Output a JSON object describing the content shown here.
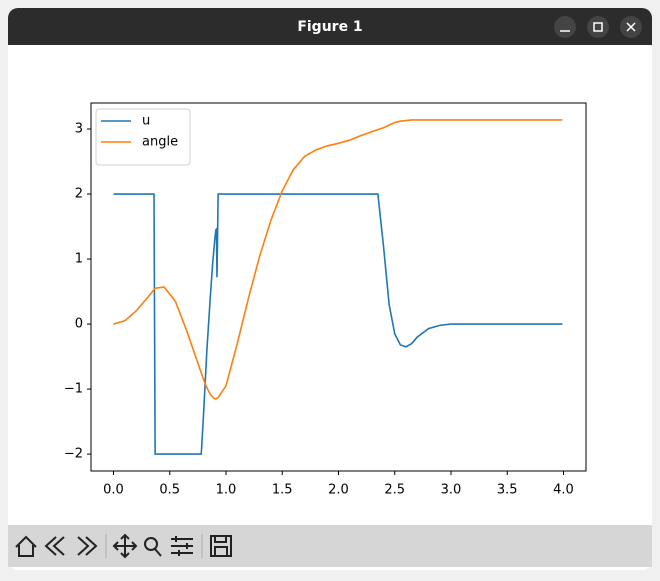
{
  "window": {
    "title": "Figure 1"
  },
  "chart_data": {
    "type": "line",
    "x": [
      0,
      0.1,
      0.2,
      0.3,
      0.36,
      0.37,
      0.45,
      0.55,
      0.65,
      0.75,
      0.78,
      0.8,
      0.83,
      0.86,
      0.88,
      0.9,
      0.91,
      0.915,
      0.92,
      0.93,
      1.0,
      1.1,
      1.2,
      1.3,
      1.4,
      1.5,
      1.6,
      1.7,
      1.8,
      1.9,
      2.0,
      2.1,
      2.2,
      2.3,
      2.35,
      2.4,
      2.45,
      2.5,
      2.55,
      2.6,
      2.65,
      2.7,
      2.8,
      2.9,
      3.0,
      3.2,
      3.4,
      3.6,
      3.8,
      3.99
    ],
    "series": [
      {
        "name": "u",
        "color": "#1f77b4",
        "values": [
          2,
          2,
          2,
          2,
          2,
          -2,
          -2,
          -2,
          -2,
          -2,
          -2,
          -1.4,
          -0.4,
          0.4,
          0.9,
          1.3,
          1.45,
          1.46,
          0.72,
          2,
          2,
          2,
          2,
          2,
          2,
          2,
          2,
          2,
          2,
          2,
          2,
          2,
          2,
          2,
          2,
          1.2,
          0.3,
          -0.15,
          -0.32,
          -0.35,
          -0.3,
          -0.2,
          -0.07,
          -0.02,
          0,
          0,
          0,
          0,
          0,
          0
        ]
      },
      {
        "name": "angle",
        "color": "#ff7f0e",
        "values": [
          0,
          0.05,
          0.2,
          0.4,
          0.53,
          0.55,
          0.57,
          0.35,
          -0.1,
          -0.6,
          -0.75,
          -0.85,
          -0.98,
          -1.08,
          -1.12,
          -1.15,
          -1.15,
          -1.15,
          -1.14,
          -1.13,
          -0.95,
          -0.3,
          0.4,
          1.05,
          1.6,
          2.05,
          2.38,
          2.58,
          2.68,
          2.74,
          2.78,
          2.83,
          2.9,
          2.96,
          2.99,
          3.02,
          3.06,
          3.1,
          3.12,
          3.13,
          3.14,
          3.14,
          3.14,
          3.14,
          3.14,
          3.14,
          3.14,
          3.14,
          3.14,
          3.14
        ]
      }
    ],
    "xlim": [
      -0.2,
      4.2
    ],
    "xticks": [
      {
        "value": 0,
        "label": "0.0"
      },
      0.5,
      {
        "value": 1,
        "label": "1.0"
      },
      1.5,
      {
        "value": 2,
        "label": "2.0"
      },
      2.5,
      {
        "value": 3,
        "label": "3.0"
      },
      3.5,
      {
        "value": 4,
        "label": "4.0"
      }
    ],
    "ylim": [
      -2.26,
      3.4
    ],
    "yticks": [
      {
        "value": -2,
        "label": "−2"
      },
      {
        "value": -1,
        "label": "−1"
      },
      0,
      1,
      2,
      3
    ],
    "grid": false,
    "legend": "upper-left"
  }
}
